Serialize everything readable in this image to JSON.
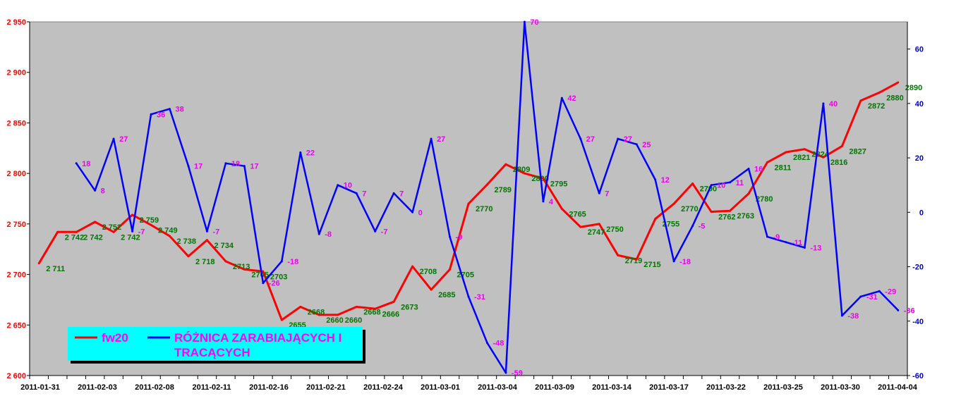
{
  "chart_data": {
    "type": "line",
    "plot_background": "#c0c0c0",
    "x_tick_labels": [
      "2011-01-31",
      "2011-02-03",
      "2011-02-08",
      "2011-02-11",
      "2011-02-16",
      "2011-02-21",
      "2011-02-24",
      "2011-03-01",
      "2011-03-04",
      "2011-03-09",
      "2011-03-14",
      "2011-03-17",
      "2011-03-22",
      "2011-03-25",
      "2011-03-30",
      "2011-04-04"
    ],
    "y_left": {
      "ticks": [
        "2 600",
        "2 650",
        "2 700",
        "2 750",
        "2 800",
        "2 850",
        "2 900",
        "2 950"
      ],
      "range": [
        2600,
        2950
      ],
      "color": "#ff0000"
    },
    "y_right": {
      "ticks": [
        "-60",
        "-40",
        "-20",
        "0",
        "20",
        "40",
        "60"
      ],
      "range": [
        -60,
        70
      ],
      "color": "#0000cc"
    },
    "series": [
      {
        "name": "fw20",
        "axis": "left",
        "color": "#ff0000",
        "values": [
          2711,
          2742,
          2742,
          2752,
          2742,
          2759,
          2749,
          2738,
          2718,
          2734,
          2713,
          2705,
          2703,
          2655,
          2668,
          2660,
          2660,
          2668,
          2666,
          2673,
          2708,
          2685,
          2705,
          2770,
          2789,
          2809,
          2800,
          2795,
          2765,
          2747,
          2750,
          2719,
          2715,
          2755,
          2770,
          2790,
          2762,
          2763,
          2780,
          2811,
          2821,
          2824,
          2816,
          2827,
          2872,
          2880,
          2890
        ],
        "labels": [
          "2 711",
          "2 742",
          "2 742",
          "2 752",
          "2 742",
          "2 759",
          "2 749",
          "2 738",
          "2 718",
          "2 734",
          "2713",
          "2705",
          "2703",
          "2655",
          "2668",
          "2660",
          "2660",
          "2668",
          "2666",
          "2673",
          "2708",
          "2685",
          "2705",
          "2770",
          "2789",
          "2809",
          "2800",
          "2795",
          "2765",
          "2747",
          "2750",
          "2719",
          "2715",
          "2755",
          "2770",
          "2790",
          "2762",
          "2763",
          "2780",
          "2811",
          "2821",
          "2824",
          "2816",
          "2827",
          "2872",
          "2880",
          "2890"
        ]
      },
      {
        "name": "RÓŻNICA ZARABIAJĄCYCH I TRACĄCYCH",
        "axis": "right",
        "color": "#0000ff",
        "values": [
          null,
          null,
          18,
          8,
          27,
          -7,
          36,
          38,
          17,
          -7,
          18,
          17,
          -26,
          -18,
          22,
          -8,
          10,
          7,
          -7,
          7,
          0,
          27,
          -9,
          -31,
          -48,
          -59,
          70,
          4,
          42,
          27,
          7,
          27,
          25,
          12,
          -18,
          -5,
          10,
          11,
          16,
          -9,
          -11,
          -13,
          40,
          -38,
          -31,
          -29,
          -36
        ],
        "labels": [
          "",
          "",
          "18",
          "8",
          "27",
          "-7",
          "36",
          "38",
          "17",
          "-7",
          "18",
          "17",
          "-26",
          "-18",
          "22",
          "-8",
          "10",
          "7",
          "-7",
          "7",
          "0",
          "27",
          "-9",
          "-31",
          "-48",
          "-59",
          "70",
          "4",
          "42",
          "27",
          "7",
          "27",
          "25",
          "12",
          "-18",
          "-5",
          "10",
          "11",
          "16",
          "-9",
          "-11",
          "-13",
          "40",
          "-38",
          "-31",
          "-29",
          "-36"
        ]
      }
    ],
    "legend": {
      "position": "bottom-left",
      "background": "#00ffff",
      "items": [
        {
          "text": "fw20",
          "color": "#ff0000",
          "text_color": "#ff00ff"
        },
        {
          "text_line1": "RÓŻNICA ZARABIAJĄCYCH I",
          "text_line2": "TRACĄCYCH",
          "color": "#0000ff",
          "text_color": "#ff00ff"
        }
      ]
    }
  }
}
